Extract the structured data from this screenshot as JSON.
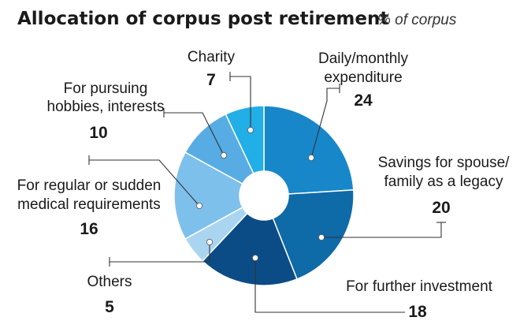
{
  "chart_data": {
    "type": "pie",
    "title": "Allocation of corpus post retirement",
    "subtitle": "% of corpus",
    "slices": [
      {
        "label_lines": [
          "Daily/monthly",
          "expenditure"
        ],
        "value": 24,
        "value_text": "24",
        "color": "#1787c9"
      },
      {
        "label_lines": [
          "Savings for spouse/",
          "family as a legacy"
        ],
        "value": 20,
        "value_text": "20",
        "color": "#0f6aa8"
      },
      {
        "label_lines": [
          "For further investment"
        ],
        "value": 18,
        "value_text": "18",
        "color": "#0b4c87"
      },
      {
        "label_lines": [
          "Others"
        ],
        "value": 5,
        "value_text": "5",
        "color": "#aad5f1"
      },
      {
        "label_lines": [
          "For regular or sudden",
          "medical requirements"
        ],
        "value": 16,
        "value_text": "16",
        "color": "#7ec0ec"
      },
      {
        "label_lines": [
          "For pursuing",
          "hobbies, interests"
        ],
        "value": 10,
        "value_text": "10",
        "color": "#57ace3"
      },
      {
        "label_lines": [
          "Charity"
        ],
        "value": 7,
        "value_text": "7",
        "color": "#22aee6"
      }
    ],
    "donut_hole": true,
    "legend": "none"
  }
}
